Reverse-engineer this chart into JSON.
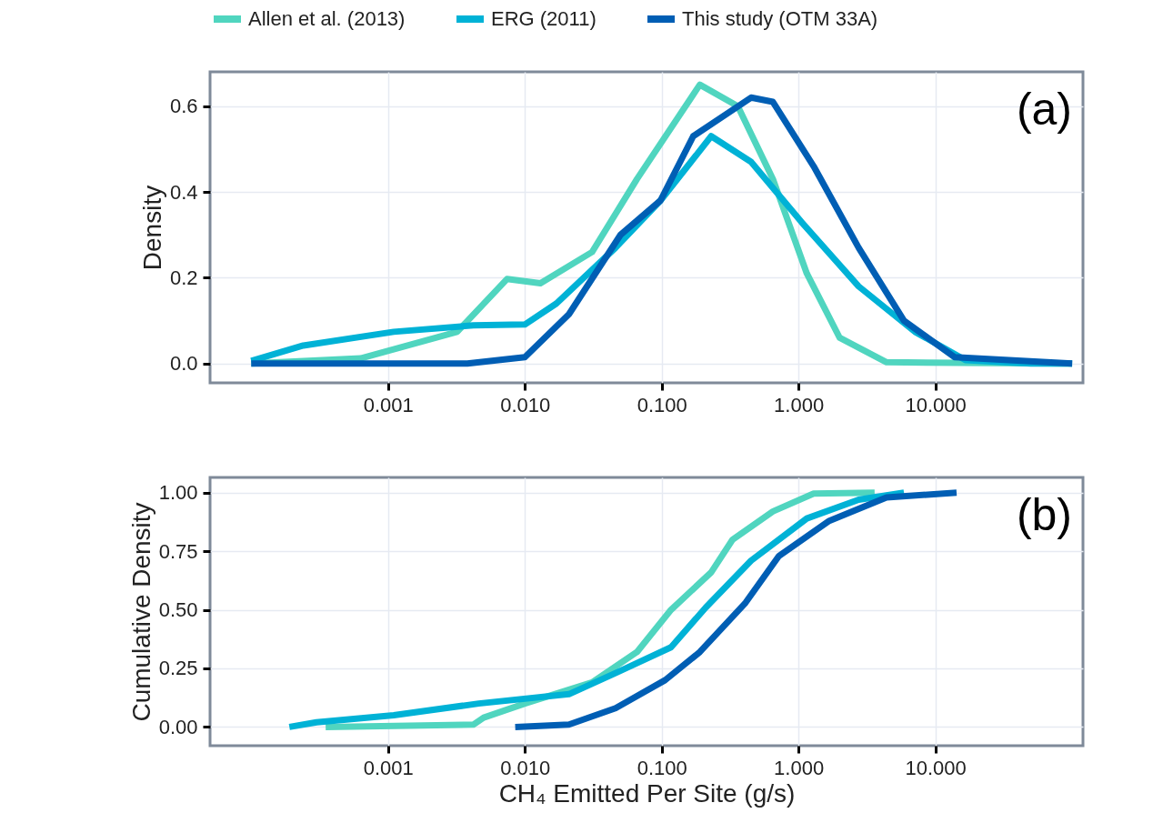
{
  "chart_data": [
    {
      "type": "line",
      "ylabel": "Density",
      "annotations": [
        "(a)"
      ],
      "legend": "top",
      "grid": true,
      "xlim": [
        5e-05,
        120
      ],
      "log": "x",
      "xticks": [
        0.001,
        {
          "value": 0.01,
          "label": "0.010"
        },
        {
          "value": 0.1,
          "label": "0.100"
        },
        {
          "value": 1,
          "label": "1.000"
        },
        {
          "value": 10,
          "label": "10.000"
        }
      ],
      "ylim": [
        -0.045,
        0.68
      ],
      "yticks": [
        {
          "value": 0,
          "label": "0.0"
        },
        0.2,
        0.4,
        0.6
      ],
      "series": [
        {
          "name": "Allen et al. (2013)",
          "color": "#50d5bf",
          "x": [
            0.0001,
            0.00063,
            0.0032,
            0.0074,
            0.013,
            0.031,
            0.066,
            0.19,
            0.36,
            0.65,
            1.15,
            2.0,
            4.4,
            100
          ],
          "values": [
            0,
            0.012,
            0.074,
            0.197,
            0.187,
            0.26,
            0.43,
            0.65,
            0.6,
            0.43,
            0.21,
            0.06,
            0.003,
            0
          ]
        },
        {
          "name": "ERG (2011)",
          "color": "#00b2d6",
          "x": [
            0.0001,
            0.00024,
            0.0011,
            0.0042,
            0.01,
            0.017,
            0.046,
            0.098,
            0.23,
            0.45,
            1.05,
            2.75,
            7.1,
            16.6,
            50,
            100
          ],
          "values": [
            0.006,
            0.042,
            0.074,
            0.089,
            0.091,
            0.14,
            0.27,
            0.38,
            0.53,
            0.47,
            0.33,
            0.18,
            0.074,
            0.008,
            0,
            0
          ]
        },
        {
          "name": "This study (OTM 33A)",
          "color": "#005eb4",
          "x": [
            0.0001,
            0.0038,
            0.01,
            0.021,
            0.05,
            0.098,
            0.17,
            0.45,
            0.65,
            1.29,
            2.75,
            5.9,
            13.8,
            100
          ],
          "values": [
            0,
            0,
            0.015,
            0.115,
            0.3,
            0.38,
            0.53,
            0.62,
            0.61,
            0.46,
            0.27,
            0.1,
            0.015,
            0
          ]
        }
      ]
    },
    {
      "type": "line",
      "xlabel": "CH₄ Emitted Per Site (g/s)",
      "ylabel": "Cumulative Density",
      "annotations": [
        "(b)"
      ],
      "grid": true,
      "xlim": [
        5e-05,
        120
      ],
      "log": "x",
      "xticks": [
        0.001,
        {
          "value": 0.01,
          "label": "0.010"
        },
        {
          "value": 0.1,
          "label": "0.100"
        },
        {
          "value": 1,
          "label": "1.000"
        },
        {
          "value": 10,
          "label": "10.000"
        }
      ],
      "ylim": [
        -0.08,
        1.065
      ],
      "yticks": [
        {
          "value": 0,
          "label": "0.00"
        },
        0.25,
        {
          "value": 0.5,
          "label": "0.50"
        },
        0.75,
        {
          "value": 1,
          "label": "1.00"
        }
      ],
      "series": [
        {
          "color": "#50d5bf",
          "x": [
            0.00035,
            0.0042,
            0.005,
            0.01,
            0.031,
            0.066,
            0.117,
            0.23,
            0.33,
            0.65,
            1.29,
            3.6
          ],
          "values": [
            0,
            0.01,
            0.04,
            0.1,
            0.19,
            0.32,
            0.5,
            0.66,
            0.8,
            0.92,
            0.996,
            1
          ]
        },
        {
          "color": "#00b2d6",
          "x": [
            0.00019,
            0.0003,
            0.0011,
            0.0046,
            0.021,
            0.046,
            0.117,
            0.21,
            0.45,
            1.15,
            2.75,
            5.9
          ],
          "values": [
            0,
            0.02,
            0.05,
            0.1,
            0.14,
            0.23,
            0.34,
            0.51,
            0.71,
            0.89,
            0.97,
            1
          ]
        },
        {
          "color": "#005eb4",
          "x": [
            0.0085,
            0.021,
            0.046,
            0.106,
            0.19,
            0.41,
            0.72,
            1.68,
            4.4,
            14.3
          ],
          "values": [
            0,
            0.01,
            0.08,
            0.2,
            0.32,
            0.53,
            0.73,
            0.88,
            0.98,
            1
          ]
        }
      ]
    }
  ]
}
